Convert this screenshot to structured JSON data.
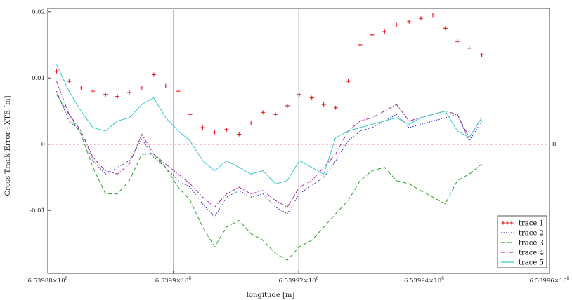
{
  "chart_data": {
    "type": "line",
    "xlabel": "longitude [m]",
    "ylabel": "Cross Track Error - XTE [m]",
    "xlim": [
      6539880,
      6539960
    ],
    "ylim": [
      -0.0195,
      0.0205
    ],
    "x_ticks": [
      {
        "value": 6539880,
        "label": "6.53988×10",
        "exp": "6"
      },
      {
        "value": 6539900,
        "label": "6.5399×10",
        "exp": "6"
      },
      {
        "value": 6539920,
        "label": "6.53992×10",
        "exp": "6"
      },
      {
        "value": 6539940,
        "label": "6.53994×10",
        "exp": "6"
      },
      {
        "value": 6539960,
        "label": "6.53996×10",
        "exp": "6"
      }
    ],
    "y_ticks": [
      {
        "value": 0.02,
        "label": "0.02"
      },
      {
        "value": 0.01,
        "label": "0.01"
      },
      {
        "value": 0,
        "label": "0"
      },
      {
        "value": -0.01,
        "label": "-0.01"
      }
    ],
    "zero_line_label": "0",
    "grid_x": [
      6539900,
      6539920,
      6539940
    ],
    "legend_position": "bottom-right",
    "series": [
      {
        "name": "trace 1",
        "style": "marker-plus",
        "color": "#e8141c",
        "x": [
          6539881.4,
          6539883.4,
          6539885.3,
          6539887.2,
          6539889.2,
          6539891.1,
          6539893.0,
          6539895.0,
          6539896.9,
          6539898.8,
          6539900.8,
          6539902.7,
          6539904.7,
          6539906.6,
          6539908.5,
          6539910.5,
          6539912.4,
          6539914.3,
          6539916.3,
          6539918.2,
          6539920.1,
          6539922.1,
          6539924.0,
          6539925.9,
          6539927.9,
          6539929.8,
          6539931.7,
          6539933.7,
          6539935.6,
          6539937.6,
          6539939.5,
          6539941.4,
          6539943.4,
          6539945.3,
          6539947.2,
          6539949.2
        ],
        "y": [
          0.011,
          0.0095,
          0.0085,
          0.008,
          0.0075,
          0.0072,
          0.0078,
          0.0085,
          0.0105,
          0.0088,
          0.008,
          0.0045,
          0.0025,
          0.0018,
          0.0022,
          0.0015,
          0.0032,
          0.0048,
          0.0045,
          0.0058,
          0.0075,
          0.007,
          0.006,
          0.0055,
          0.0095,
          0.015,
          0.0165,
          0.017,
          0.018,
          0.0185,
          0.019,
          0.0195,
          0.0175,
          0.0155,
          0.0145,
          0.0135
        ]
      },
      {
        "name": "trace 2",
        "style": "dotted",
        "color": "#3232b4",
        "x": [
          6539881.4,
          6539883.4,
          6539885.3,
          6539887.2,
          6539889.2,
          6539891.1,
          6539893.0,
          6539895.0,
          6539896.9,
          6539898.8,
          6539900.8,
          6539902.7,
          6539904.7,
          6539906.6,
          6539908.5,
          6539910.5,
          6539912.4,
          6539914.3,
          6539916.3,
          6539918.2,
          6539920.1,
          6539922.1,
          6539924.0,
          6539925.9,
          6539927.9,
          6539929.8,
          6539931.7,
          6539933.7,
          6539935.6,
          6539937.6,
          6539939.5,
          6539941.4,
          6539943.4,
          6539945.3,
          6539947.2,
          6539949.2
        ],
        "y": [
          0.008,
          0.0035,
          0.002,
          -0.0025,
          -0.0045,
          -0.0035,
          -0.0025,
          0.0008,
          -0.002,
          -0.0035,
          -0.0055,
          -0.0065,
          -0.009,
          -0.011,
          -0.008,
          -0.007,
          -0.008,
          -0.0075,
          -0.0095,
          -0.0105,
          -0.0075,
          -0.0062,
          -0.005,
          -0.0025,
          0.0005,
          0.002,
          0.0025,
          0.0035,
          0.0045,
          0.0025,
          0.003,
          0.0035,
          0.004,
          0.0045,
          0.0005,
          0.0035
        ]
      },
      {
        "name": "trace 3",
        "style": "dashed",
        "color": "#28a028",
        "x": [
          6539881.4,
          6539883.4,
          6539885.3,
          6539887.2,
          6539889.2,
          6539891.1,
          6539893.0,
          6539895.0,
          6539896.9,
          6539898.8,
          6539900.8,
          6539902.7,
          6539904.7,
          6539906.6,
          6539908.5,
          6539910.5,
          6539912.4,
          6539914.3,
          6539916.3,
          6539918.2,
          6539920.1,
          6539922.1,
          6539924.0,
          6539925.9,
          6539927.9,
          6539929.8,
          6539931.7,
          6539933.7,
          6539935.6,
          6539937.6,
          6539939.5,
          6539941.4,
          6539943.4,
          6539945.3,
          6539947.2,
          6539949.2
        ],
        "y": [
          0.0075,
          0.0045,
          0.0015,
          -0.0035,
          -0.0075,
          -0.0075,
          -0.0055,
          -0.0015,
          -0.0015,
          -0.0035,
          -0.0065,
          -0.0085,
          -0.0125,
          -0.0155,
          -0.0125,
          -0.0115,
          -0.0135,
          -0.0145,
          -0.0165,
          -0.0175,
          -0.0155,
          -0.0145,
          -0.0125,
          -0.0105,
          -0.0085,
          -0.0055,
          -0.004,
          -0.0035,
          -0.0055,
          -0.006,
          -0.007,
          -0.008,
          -0.009,
          -0.0055,
          -0.0045,
          -0.003
        ]
      },
      {
        "name": "trace 4",
        "style": "dash-dot",
        "color": "#a02aa0",
        "x": [
          6539881.4,
          6539883.4,
          6539885.3,
          6539887.2,
          6539889.2,
          6539891.1,
          6539893.0,
          6539895.0,
          6539896.9,
          6539898.8,
          6539900.8,
          6539902.7,
          6539904.7,
          6539906.6,
          6539908.5,
          6539910.5,
          6539912.4,
          6539914.3,
          6539916.3,
          6539918.2,
          6539920.1,
          6539922.1,
          6539924.0,
          6539925.9,
          6539927.9,
          6539929.8,
          6539931.7,
          6539933.7,
          6539935.6,
          6539937.6,
          6539939.5,
          6539941.4,
          6539943.4,
          6539945.3,
          6539947.2,
          6539949.2
        ],
        "y": [
          0.0095,
          0.0045,
          0.002,
          -0.002,
          -0.004,
          -0.0045,
          -0.003,
          0.0015,
          -0.0015,
          -0.003,
          -0.0045,
          -0.006,
          -0.008,
          -0.0095,
          -0.0075,
          -0.0065,
          -0.0075,
          -0.007,
          -0.0085,
          -0.0095,
          -0.0065,
          -0.0055,
          -0.0035,
          -0.0015,
          0.002,
          0.0035,
          0.004,
          0.005,
          0.006,
          0.0035,
          0.004,
          0.0045,
          0.005,
          0.0045,
          0.001,
          0.004
        ]
      },
      {
        "name": "trace 5",
        "style": "solid",
        "color": "#3cc8d2",
        "x": [
          6539881.4,
          6539883.4,
          6539885.3,
          6539887.2,
          6539889.2,
          6539891.1,
          6539893.0,
          6539895.0,
          6539896.9,
          6539898.8,
          6539900.8,
          6539902.7,
          6539904.7,
          6539906.6,
          6539908.5,
          6539910.5,
          6539912.4,
          6539914.3,
          6539916.3,
          6539918.2,
          6539920.1,
          6539922.1,
          6539924.0,
          6539925.9,
          6539927.9,
          6539929.8,
          6539931.7,
          6539933.7,
          6539935.6,
          6539937.6,
          6539939.5,
          6539941.4,
          6539943.4,
          6539945.3,
          6539947.2,
          6539949.2
        ],
        "y": [
          0.012,
          0.008,
          0.005,
          0.0025,
          0.002,
          0.0035,
          0.004,
          0.006,
          0.007,
          0.004,
          0.002,
          0.0005,
          -0.0025,
          -0.004,
          -0.0025,
          -0.0035,
          -0.0045,
          -0.004,
          -0.006,
          -0.0055,
          -0.0025,
          -0.0035,
          -0.0045,
          0.001,
          0.002,
          0.0025,
          0.003,
          0.0035,
          0.004,
          0.003,
          0.004,
          0.0045,
          0.005,
          0.002,
          0.001,
          0.004
        ]
      }
    ]
  }
}
